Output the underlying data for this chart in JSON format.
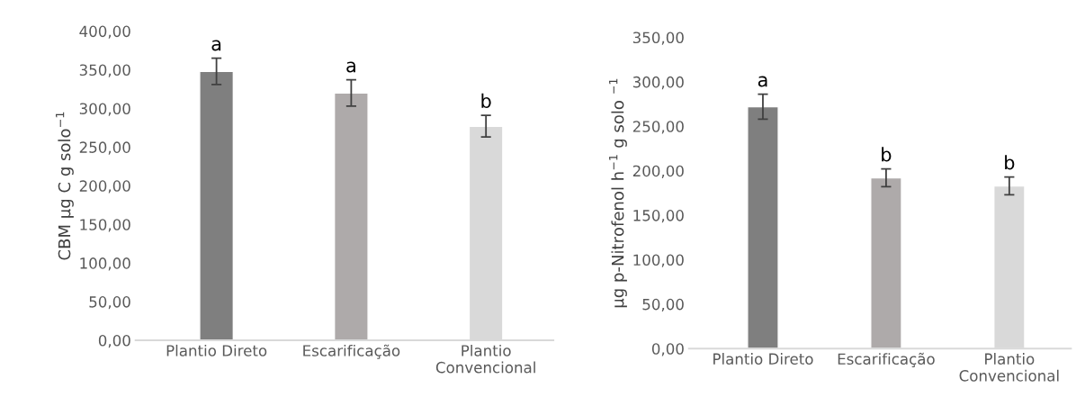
{
  "chart_data": [
    {
      "type": "bar",
      "ylabel": "CBM µg C g solo$^{−1}$",
      "categories": [
        "Plantio Direto",
        "Escarificação",
        "Plantio\nConvencional"
      ],
      "values": [
        348,
        320,
        277
      ],
      "errors": [
        17,
        17,
        14
      ],
      "colors": [
        "#7f7f7f",
        "#aeaaaa",
        "#d9d9d9"
      ],
      "ylim": [
        0,
        400
      ],
      "yticks": [
        {
          "value": 0,
          "label": "0,00"
        },
        {
          "value": 50,
          "label": "50,00"
        },
        {
          "value": 100,
          "label": "100,00"
        },
        {
          "value": 150,
          "label": "150,00"
        },
        {
          "value": 200,
          "label": "200,00"
        },
        {
          "value": 250,
          "label": "250,00"
        },
        {
          "value": 300,
          "label": "300,00"
        },
        {
          "value": 350,
          "label": "350,00"
        },
        {
          "value": 400,
          "label": "400,00"
        }
      ],
      "annotations": [
        {
          "text": "a",
          "x": "Plantio Direto",
          "y": 365
        },
        {
          "text": "a",
          "x": "Escarificação",
          "y": 337
        },
        {
          "text": "b",
          "x": "Plantio\nConvencional",
          "y": 291
        }
      ],
      "grid": false
    },
    {
      "type": "bar",
      "ylabel": "µg p-Nitrofenol h$^{−1}$ g solo $^{−1}$",
      "categories": [
        "Plantio Direto",
        "Escarificação",
        "Plantio\nConvencional"
      ],
      "values": [
        272,
        192,
        183
      ],
      "errors": [
        14,
        10,
        10
      ],
      "colors": [
        "#7f7f7f",
        "#aeaaaa",
        "#d9d9d9"
      ],
      "ylim": [
        0,
        350
      ],
      "yticks": [
        {
          "value": 0,
          "label": "0,00"
        },
        {
          "value": 50,
          "label": "50,00"
        },
        {
          "value": 100,
          "label": "100,00"
        },
        {
          "value": 150,
          "label": "150,00"
        },
        {
          "value": 200,
          "label": "200,00"
        },
        {
          "value": 250,
          "label": "250,00"
        },
        {
          "value": 300,
          "label": "300,00"
        },
        {
          "value": 350,
          "label": "350,00"
        }
      ],
      "annotations": [
        {
          "text": "a",
          "x": "Plantio Direto",
          "y": 286
        },
        {
          "text": "b",
          "x": "Escarificação",
          "y": 202
        },
        {
          "text": "b",
          "x": "Plantio\nConvencional",
          "y": 193
        }
      ],
      "grid": false
    }
  ]
}
